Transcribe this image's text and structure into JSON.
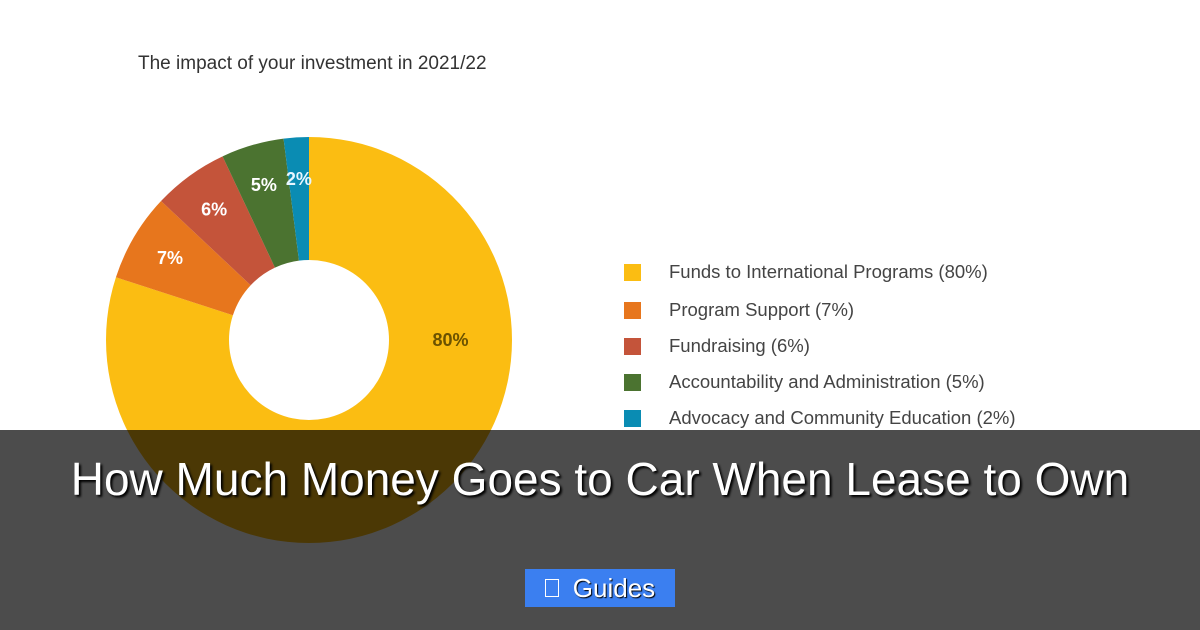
{
  "chart_data": {
    "type": "pie",
    "donut": true,
    "title": "The impact of your investment in 2021/22",
    "legend_position": "right",
    "series": [
      {
        "name": "Funds to International Programs (80%)",
        "value": 80,
        "label": "80%",
        "color": "#fbbd12"
      },
      {
        "name": "Program Support (7%)",
        "value": 7,
        "label": "7%",
        "color": "#e7761d"
      },
      {
        "name": "Fundraising (6%)",
        "value": 6,
        "label": "6%",
        "color": "#c4543a"
      },
      {
        "name": "Accountability and Administration (5%)",
        "value": 5,
        "label": "5%",
        "color": "#4b7330"
      },
      {
        "name": "Advocacy and Community Education (2%)",
        "value": 2,
        "label": "2%",
        "color": "#0a8cb3"
      }
    ]
  },
  "overlay": {
    "headline": "How Much Money Goes to Car When Lease to Own",
    "category_button": "Guides",
    "category_icon": "square-icon",
    "button_color": "#3b7ff0"
  }
}
